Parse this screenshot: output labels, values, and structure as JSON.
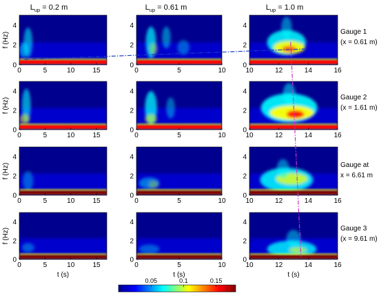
{
  "chart_data": {
    "type": "heatmap",
    "columns": [
      {
        "header_main": "L",
        "header_sub": "up",
        "header_rest": " = 0.2 m",
        "xlim": [
          0,
          17
        ],
        "xticks": [
          0,
          5,
          10,
          15
        ],
        "xlabel": "t (s)"
      },
      {
        "header_main": "L",
        "header_sub": "up",
        "header_rest": " = 0.61 m",
        "xlim": [
          0,
          10
        ],
        "xticks": [
          0,
          5,
          10
        ],
        "xlabel": "t (s)"
      },
      {
        "header_main": "L",
        "header_sub": "up",
        "header_rest": " = 1.0 m",
        "xlim": [
          10,
          16
        ],
        "xticks": [
          10,
          12,
          14,
          16
        ],
        "xlabel": "t (s)"
      }
    ],
    "rows": [
      {
        "label_line1": "Gauge 1",
        "label_line2": "(x = 0.61 m)"
      },
      {
        "label_line1": "Gauge 2",
        "label_line2": "(x = 1.61 m)"
      },
      {
        "label_line1": "Gauge at",
        "label_line2": "x = 6.61 m"
      },
      {
        "label_line1": "Gauge 3",
        "label_line2": "(x = 9.61 m)"
      }
    ],
    "ylabel": "f (Hz)",
    "ylim": [
      0,
      5
    ],
    "yticks": [
      0,
      2,
      4
    ],
    "colorbar": {
      "ticks": [
        0.05,
        0.1,
        0.15
      ],
      "min": 0,
      "max": 0.18
    },
    "row0_dashline": {
      "col0_t": 1.0,
      "col0_f": 0.55,
      "col2_t": 13.8,
      "col2_f": 1.6
    },
    "col2_dashline": {
      "row0_t": 12.8,
      "row0_f": 2.3,
      "row3_t": 13.5,
      "row3_f": 0.3
    }
  },
  "colors": {
    "dark_blue": "#00008f",
    "blue": "#0000ff",
    "cyan": "#00ffff",
    "yellow": "#ffff00",
    "red": "#ff0000",
    "dark_red": "#800000",
    "dashline_blue": "#1a3cc8",
    "dashline_magenta": "#c832c8"
  }
}
